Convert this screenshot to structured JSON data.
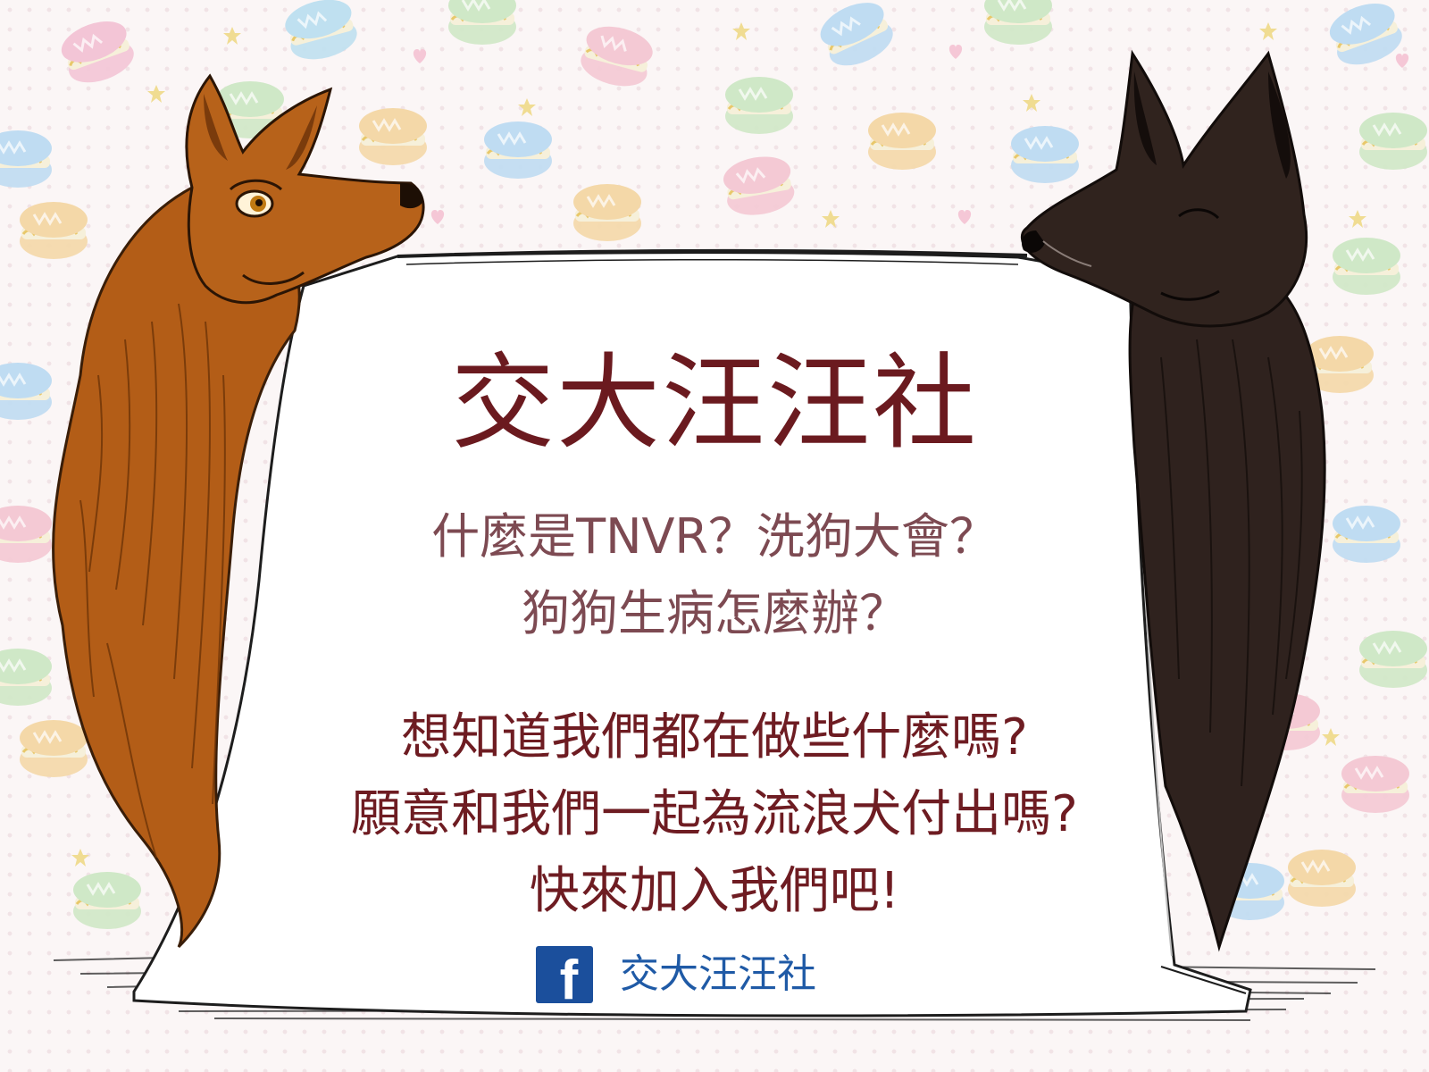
{
  "poster": {
    "title": "交大汪汪社",
    "question_line_1": "什麼是TNVR？洗狗大會？",
    "question_line_2": "狗狗生病怎麼辦？",
    "invite_line_1": "想知道我們都在做些什麼嗎?",
    "invite_line_2": "願意和我們一起為流浪犬付出嗎?",
    "invite_line_3": "快來加入我們吧!"
  },
  "facebook": {
    "icon": "facebook-icon",
    "page_name": "交大汪汪社"
  },
  "colors": {
    "title": "#6b1a1f",
    "questions": "#7d4a52",
    "invite": "#6e1c22",
    "facebook_blue": "#1b4f9c",
    "facebook_text": "#1f5aa6",
    "brown_dog": "#b1601a",
    "black_dog": "#2f221e"
  }
}
